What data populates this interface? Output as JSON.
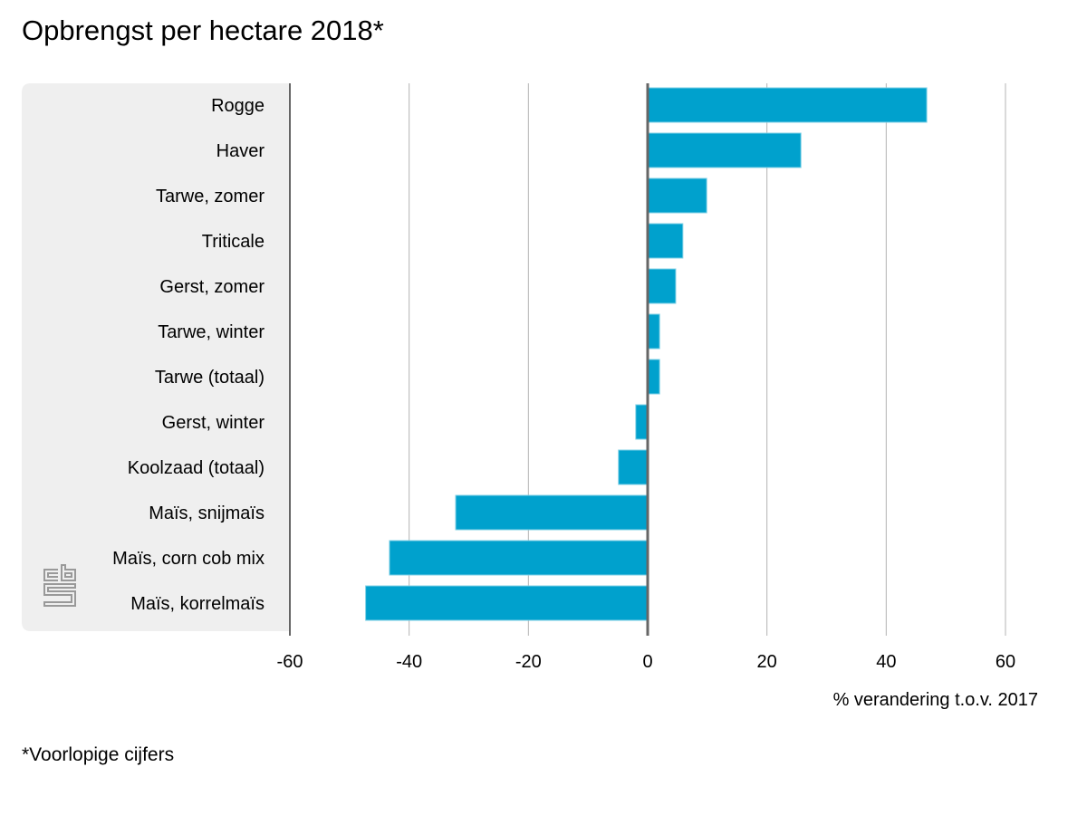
{
  "title": "Opbrengst per hectare 2018*",
  "footnote": "*Voorlopige cijfers",
  "colors": {
    "bar": "#00a1cd",
    "bar_edge": "#7fd0e6",
    "panel": "#efefef",
    "grid": "#b4b4b4",
    "zero_axis": "#666666"
  },
  "logo": {
    "name": "cbs-logo",
    "text": "cbs"
  },
  "chart_data": {
    "type": "bar",
    "orientation": "horizontal",
    "title": "Opbrengst per hectare 2018*",
    "xlabel": "% verandering t.o.v. 2017",
    "ylabel": "",
    "xlim": [
      -60,
      60
    ],
    "xticks": [
      -60,
      -40,
      -20,
      0,
      20,
      40,
      60
    ],
    "xtick_labels": [
      "-60",
      "-40",
      "-20",
      "0",
      "20",
      "40",
      "60"
    ],
    "grid": true,
    "categories": [
      "Rogge",
      "Haver",
      "Tarwe, zomer",
      "Triticale",
      "Gerst, zomer",
      "Tarwe, winter",
      "Tarwe (totaal)",
      "Gerst, winter",
      "Koolzaad (totaal)",
      "Maïs, snijmaïs",
      "Maïs, corn cob mix",
      "Maïs, korrelmaïs"
    ],
    "values": [
      46.8,
      25.7,
      9.9,
      5.9,
      4.7,
      2.0,
      2.0,
      -2.0,
      -4.9,
      -32.2,
      -43.3,
      -47.3
    ]
  }
}
